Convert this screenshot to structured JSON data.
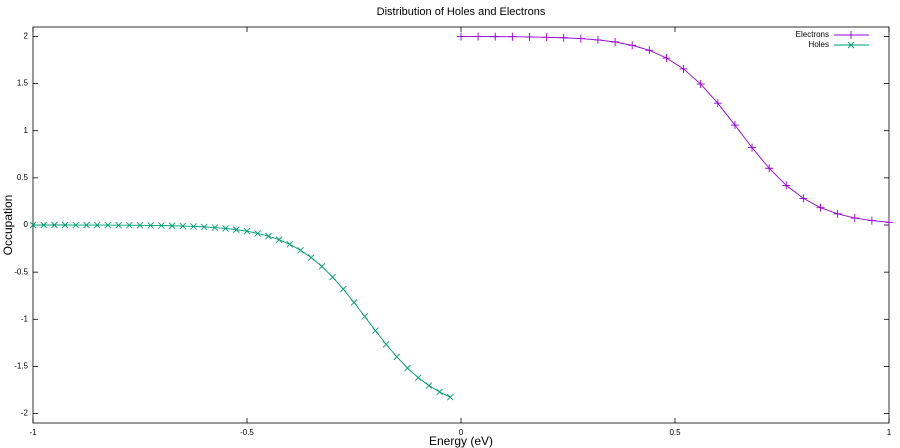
{
  "chart_data": {
    "type": "line",
    "title": "Distribution of Holes and Electrons",
    "x_label": "Energy (eV)",
    "y_label": "Occupation",
    "xlim": [
      -1,
      1
    ],
    "xticks": [
      -1,
      -0.5,
      0,
      0.5,
      1
    ],
    "ylim": [
      -2.1,
      2.1
    ],
    "yticks": [
      -2,
      -1.5,
      -1,
      -0.5,
      0,
      0.5,
      1,
      1.5,
      2
    ],
    "grid": false,
    "legend": "top-right",
    "series": [
      {
        "name": "Electrons",
        "color": "#9400d3",
        "marker": "+",
        "x": [
          0,
          0.04,
          0.08,
          0.12,
          0.16,
          0.2,
          0.24,
          0.28,
          0.32,
          0.36,
          0.4,
          0.44,
          0.48,
          0.52,
          0.56,
          0.6,
          0.64,
          0.68,
          0.72,
          0.76,
          0.8,
          0.84,
          0.88,
          0.92,
          0.96,
          1
        ],
        "values": [
          1.999,
          1.999,
          1.998,
          1.997,
          1.995,
          1.991,
          1.986,
          1.977,
          1.963,
          1.941,
          1.906,
          1.853,
          1.771,
          1.655,
          1.495,
          1.292,
          1.06,
          0.821,
          0.602,
          0.42,
          0.282,
          0.184,
          0.118,
          0.074,
          0.047,
          0.029
        ]
      },
      {
        "name": "Holes",
        "color": "#009e73",
        "marker": "x",
        "x": [
          -1,
          -0.975,
          -0.95,
          -0.925,
          -0.9,
          -0.875,
          -0.85,
          -0.825,
          -0.8,
          -0.775,
          -0.75,
          -0.725,
          -0.7,
          -0.675,
          -0.65,
          -0.625,
          -0.6,
          -0.575,
          -0.55,
          -0.525,
          -0.5,
          -0.475,
          -0.45,
          -0.425,
          -0.4,
          -0.375,
          -0.35,
          -0.325,
          -0.3,
          -0.275,
          -0.25,
          -0.225,
          -0.2,
          -0.175,
          -0.15,
          -0.125,
          -0.1,
          -0.075,
          -0.05,
          -0.025
        ],
        "values": [
          0,
          0,
          0,
          0,
          -0.001,
          -0.001,
          -0.001,
          -0.001,
          -0.002,
          -0.002,
          -0.003,
          -0.005,
          -0.006,
          -0.008,
          -0.011,
          -0.015,
          -0.02,
          -0.027,
          -0.037,
          -0.049,
          -0.066,
          -0.089,
          -0.118,
          -0.156,
          -0.205,
          -0.268,
          -0.345,
          -0.44,
          -0.552,
          -0.68,
          -0.821,
          -0.97,
          -1.12,
          -1.265,
          -1.398,
          -1.517,
          -1.619,
          -1.703,
          -1.771,
          -1.826
        ]
      }
    ]
  }
}
